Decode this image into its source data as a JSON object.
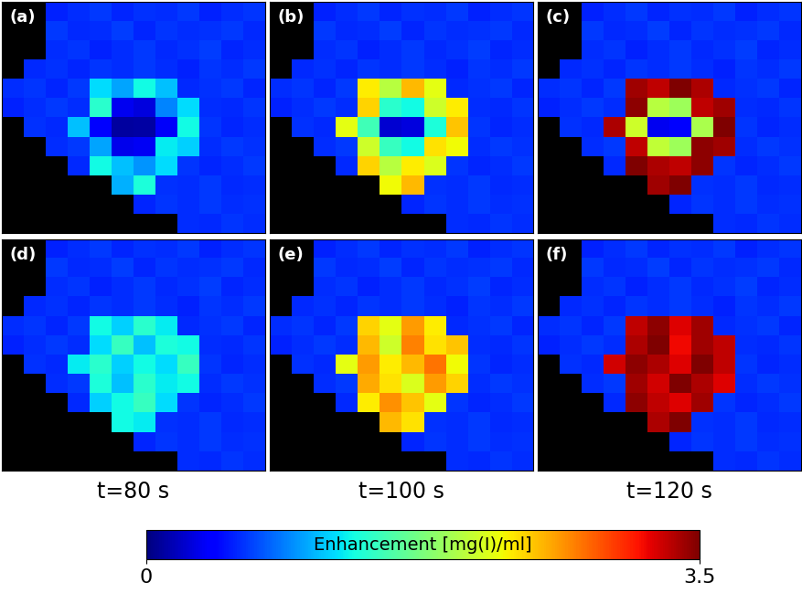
{
  "chart_data": [
    {
      "type": "heatmap",
      "title": "(a)",
      "tick_labels": false,
      "cells": [
        [
          null,
          null,
          0.55,
          0.6,
          0.64,
          0.57,
          0.61,
          0.59,
          0.63,
          0.56,
          0.6,
          0.62
        ],
        [
          null,
          null,
          0.63,
          0.58,
          0.6,
          0.65,
          0.57,
          0.62,
          0.59,
          0.61,
          0.64,
          0.58
        ],
        [
          null,
          null,
          0.59,
          0.62,
          0.56,
          0.6,
          0.63,
          0.58,
          0.61,
          0.65,
          0.57,
          0.6
        ],
        [
          null,
          0.58,
          0.61,
          0.57,
          0.62,
          0.59,
          0.64,
          0.6,
          0.56,
          0.62,
          0.59,
          0.63
        ],
        [
          0.6,
          0.62,
          0.57,
          0.64,
          1.2,
          1.0,
          1.3,
          1.1,
          0.58,
          0.61,
          0.63,
          0.57
        ],
        [
          0.56,
          0.6,
          0.63,
          0.59,
          1.4,
          0.35,
          0.3,
          0.9,
          1.2,
          0.6,
          0.58,
          0.62
        ],
        [
          null,
          0.61,
          0.58,
          1.1,
          0.4,
          0.1,
          0.12,
          0.38,
          1.3,
          0.62,
          0.57,
          0.6
        ],
        [
          null,
          null,
          0.6,
          0.63,
          1.0,
          0.33,
          0.36,
          1.25,
          1.15,
          0.59,
          0.64,
          0.61
        ],
        [
          null,
          null,
          null,
          0.58,
          1.3,
          1.1,
          0.95,
          1.2,
          0.62,
          0.57,
          0.6,
          0.63
        ],
        [
          null,
          null,
          null,
          null,
          null,
          1.05,
          1.35,
          0.61,
          0.59,
          0.64,
          0.58,
          0.6
        ],
        [
          null,
          null,
          null,
          null,
          null,
          null,
          0.57,
          0.62,
          0.6,
          0.63,
          0.59,
          0.61
        ],
        [
          null,
          null,
          null,
          null,
          null,
          null,
          null,
          null,
          0.6,
          0.58,
          0.62,
          0.59
        ]
      ]
    },
    {
      "type": "heatmap",
      "title": "(b)",
      "tick_labels": false,
      "cells": [
        [
          null,
          null,
          0.55,
          0.6,
          0.64,
          0.57,
          0.61,
          0.59,
          0.63,
          0.56,
          0.6,
          0.62
        ],
        [
          null,
          null,
          0.63,
          0.58,
          0.6,
          0.65,
          0.57,
          0.62,
          0.59,
          0.61,
          0.64,
          0.58
        ],
        [
          null,
          null,
          0.59,
          0.62,
          0.56,
          0.6,
          0.63,
          0.58,
          0.61,
          0.65,
          0.57,
          0.6
        ],
        [
          null,
          0.58,
          0.61,
          0.57,
          0.62,
          0.59,
          0.64,
          0.6,
          0.56,
          0.62,
          0.59,
          0.63
        ],
        [
          0.6,
          0.62,
          0.57,
          0.64,
          2.3,
          2.0,
          2.5,
          2.2,
          0.58,
          0.61,
          0.63,
          0.57
        ],
        [
          0.56,
          0.6,
          0.63,
          0.59,
          2.4,
          1.4,
          1.3,
          2.1,
          2.3,
          0.6,
          0.58,
          0.62
        ],
        [
          null,
          0.61,
          0.58,
          2.2,
          1.5,
          0.25,
          0.3,
          1.35,
          2.45,
          0.62,
          0.57,
          0.6
        ],
        [
          null,
          null,
          0.6,
          0.63,
          2.1,
          1.45,
          1.3,
          2.35,
          2.25,
          0.59,
          0.64,
          0.61
        ],
        [
          null,
          null,
          null,
          0.58,
          2.4,
          2.0,
          2.3,
          2.15,
          0.62,
          0.57,
          0.6,
          0.63
        ],
        [
          null,
          null,
          null,
          null,
          null,
          2.25,
          2.5,
          0.61,
          0.59,
          0.64,
          0.58,
          0.6
        ],
        [
          null,
          null,
          null,
          null,
          null,
          null,
          0.57,
          0.62,
          0.6,
          0.63,
          0.59,
          0.61
        ],
        [
          null,
          null,
          null,
          null,
          null,
          null,
          null,
          null,
          0.6,
          0.58,
          0.62,
          0.59
        ]
      ]
    },
    {
      "type": "heatmap",
      "title": "(c)",
      "tick_labels": false,
      "cells": [
        [
          null,
          null,
          0.55,
          0.6,
          0.64,
          0.57,
          0.61,
          0.59,
          0.63,
          0.56,
          0.6,
          0.62
        ],
        [
          null,
          null,
          0.63,
          0.58,
          0.6,
          0.65,
          0.57,
          0.62,
          0.59,
          0.61,
          0.64,
          0.58
        ],
        [
          null,
          null,
          0.59,
          0.62,
          0.56,
          0.6,
          0.63,
          0.58,
          0.61,
          0.65,
          0.57,
          0.6
        ],
        [
          null,
          0.58,
          0.61,
          0.57,
          0.62,
          0.59,
          0.64,
          0.6,
          0.56,
          0.62,
          0.59,
          0.63
        ],
        [
          0.6,
          0.62,
          0.57,
          0.64,
          3.4,
          3.3,
          3.5,
          3.35,
          0.58,
          0.61,
          0.63,
          0.57
        ],
        [
          0.56,
          0.6,
          0.63,
          0.59,
          3.45,
          2.0,
          1.9,
          3.3,
          3.4,
          0.6,
          0.58,
          0.62
        ],
        [
          null,
          0.61,
          0.58,
          3.35,
          2.1,
          0.35,
          0.4,
          1.95,
          3.5,
          0.62,
          0.57,
          0.6
        ],
        [
          null,
          null,
          0.6,
          0.63,
          3.3,
          2.05,
          1.9,
          3.45,
          3.4,
          0.59,
          0.64,
          0.61
        ],
        [
          null,
          null,
          null,
          0.58,
          3.5,
          3.35,
          3.3,
          3.45,
          0.62,
          0.57,
          0.6,
          0.63
        ],
        [
          null,
          null,
          null,
          null,
          null,
          3.4,
          3.5,
          0.61,
          0.59,
          0.64,
          0.58,
          0.6
        ],
        [
          null,
          null,
          null,
          null,
          null,
          null,
          0.57,
          0.62,
          0.6,
          0.63,
          0.59,
          0.61
        ],
        [
          null,
          null,
          null,
          null,
          null,
          null,
          null,
          null,
          0.6,
          0.58,
          0.62,
          0.59
        ]
      ]
    },
    {
      "type": "heatmap",
      "title": "(d)",
      "xlabel": "t=80 s",
      "tick_labels": false,
      "cells": [
        [
          null,
          null,
          0.55,
          0.6,
          0.64,
          0.57,
          0.61,
          0.59,
          0.63,
          0.56,
          0.6,
          0.62
        ],
        [
          null,
          null,
          0.63,
          0.58,
          0.6,
          0.65,
          0.57,
          0.62,
          0.59,
          0.61,
          0.64,
          0.58
        ],
        [
          null,
          null,
          0.59,
          0.62,
          0.56,
          0.6,
          0.63,
          0.58,
          0.61,
          0.65,
          0.57,
          0.6
        ],
        [
          null,
          0.58,
          0.61,
          0.57,
          0.62,
          0.59,
          0.64,
          0.6,
          0.56,
          0.62,
          0.59,
          0.63
        ],
        [
          0.6,
          0.62,
          0.57,
          0.64,
          1.3,
          1.15,
          1.4,
          1.25,
          0.58,
          0.61,
          0.63,
          0.57
        ],
        [
          0.56,
          0.6,
          0.63,
          0.59,
          1.2,
          1.45,
          1.1,
          1.35,
          1.3,
          0.6,
          0.58,
          0.62
        ],
        [
          null,
          0.61,
          0.58,
          1.25,
          1.4,
          1.15,
          1.3,
          1.2,
          1.45,
          0.62,
          0.57,
          0.6
        ],
        [
          null,
          null,
          0.6,
          0.63,
          1.35,
          1.1,
          1.4,
          1.25,
          1.3,
          0.59,
          0.64,
          0.61
        ],
        [
          null,
          null,
          null,
          0.58,
          1.15,
          1.3,
          1.45,
          1.2,
          0.62,
          0.57,
          0.6,
          0.63
        ],
        [
          null,
          null,
          null,
          null,
          null,
          1.3,
          1.25,
          0.61,
          0.59,
          0.64,
          0.58,
          0.6
        ],
        [
          null,
          null,
          null,
          null,
          null,
          null,
          0.57,
          0.62,
          0.6,
          0.63,
          0.59,
          0.61
        ],
        [
          null,
          null,
          null,
          null,
          null,
          null,
          null,
          null,
          0.6,
          0.58,
          0.62,
          0.59
        ]
      ]
    },
    {
      "type": "heatmap",
      "title": "(e)",
      "xlabel": "t=100 s",
      "tick_labels": false,
      "cells": [
        [
          null,
          null,
          0.55,
          0.6,
          0.64,
          0.57,
          0.61,
          0.59,
          0.63,
          0.56,
          0.6,
          0.62
        ],
        [
          null,
          null,
          0.63,
          0.58,
          0.6,
          0.65,
          0.57,
          0.62,
          0.59,
          0.61,
          0.64,
          0.58
        ],
        [
          null,
          null,
          0.59,
          0.62,
          0.56,
          0.6,
          0.63,
          0.58,
          0.61,
          0.65,
          0.57,
          0.6
        ],
        [
          null,
          0.58,
          0.61,
          0.57,
          0.62,
          0.59,
          0.64,
          0.6,
          0.56,
          0.62,
          0.59,
          0.63
        ],
        [
          0.6,
          0.62,
          0.57,
          0.64,
          2.4,
          2.2,
          2.6,
          2.3,
          0.58,
          0.61,
          0.63,
          0.57
        ],
        [
          0.56,
          0.6,
          0.63,
          0.59,
          2.5,
          2.1,
          2.7,
          2.35,
          2.45,
          0.6,
          0.58,
          0.62
        ],
        [
          null,
          0.61,
          0.58,
          2.2,
          2.6,
          2.3,
          2.5,
          2.75,
          2.25,
          0.62,
          0.57,
          0.6
        ],
        [
          null,
          null,
          0.6,
          0.63,
          2.55,
          2.35,
          2.15,
          2.6,
          2.4,
          0.59,
          0.64,
          0.61
        ],
        [
          null,
          null,
          null,
          0.58,
          2.3,
          2.65,
          2.45,
          2.2,
          0.62,
          0.57,
          0.6,
          0.63
        ],
        [
          null,
          null,
          null,
          null,
          null,
          2.5,
          2.35,
          0.61,
          0.59,
          0.64,
          0.58,
          0.6
        ],
        [
          null,
          null,
          null,
          null,
          null,
          null,
          0.57,
          0.62,
          0.6,
          0.63,
          0.59,
          0.61
        ],
        [
          null,
          null,
          null,
          null,
          null,
          null,
          null,
          null,
          0.6,
          0.58,
          0.62,
          0.59
        ]
      ]
    },
    {
      "type": "heatmap",
      "title": "(f)",
      "xlabel": "t=120 s",
      "tick_labels": false,
      "cells": [
        [
          null,
          null,
          0.55,
          0.6,
          0.64,
          0.57,
          0.61,
          0.59,
          0.63,
          0.56,
          0.6,
          0.62
        ],
        [
          null,
          null,
          0.63,
          0.58,
          0.6,
          0.65,
          0.57,
          0.62,
          0.59,
          0.61,
          0.64,
          0.58
        ],
        [
          null,
          null,
          0.59,
          0.62,
          0.56,
          0.6,
          0.63,
          0.58,
          0.61,
          0.65,
          0.57,
          0.6
        ],
        [
          null,
          0.58,
          0.61,
          0.57,
          0.62,
          0.59,
          0.64,
          0.6,
          0.56,
          0.62,
          0.59,
          0.63
        ],
        [
          0.6,
          0.62,
          0.57,
          0.64,
          3.3,
          3.45,
          3.2,
          3.4,
          0.58,
          0.61,
          0.63,
          0.57
        ],
        [
          0.56,
          0.6,
          0.63,
          0.59,
          3.35,
          3.5,
          3.15,
          3.4,
          3.3,
          0.6,
          0.58,
          0.62
        ],
        [
          null,
          0.61,
          0.58,
          3.25,
          3.45,
          3.35,
          3.2,
          3.5,
          3.3,
          0.62,
          0.57,
          0.6
        ],
        [
          null,
          null,
          0.6,
          0.63,
          3.4,
          3.25,
          3.5,
          3.35,
          3.2,
          0.59,
          0.64,
          0.61
        ],
        [
          null,
          null,
          null,
          0.58,
          3.45,
          3.3,
          3.2,
          3.4,
          0.62,
          0.57,
          0.6,
          0.63
        ],
        [
          null,
          null,
          null,
          null,
          null,
          3.35,
          3.5,
          0.61,
          0.59,
          0.64,
          0.58,
          0.6
        ],
        [
          null,
          null,
          null,
          null,
          null,
          null,
          0.57,
          0.62,
          0.6,
          0.63,
          0.59,
          0.61
        ],
        [
          null,
          null,
          null,
          null,
          null,
          null,
          null,
          null,
          0.6,
          0.58,
          0.62,
          0.59
        ]
      ]
    }
  ],
  "colorbar": {
    "label": "Enhancement [mg(I)/ml]",
    "range": [
      0,
      3.5
    ],
    "ticks": [
      0,
      3.5
    ]
  }
}
